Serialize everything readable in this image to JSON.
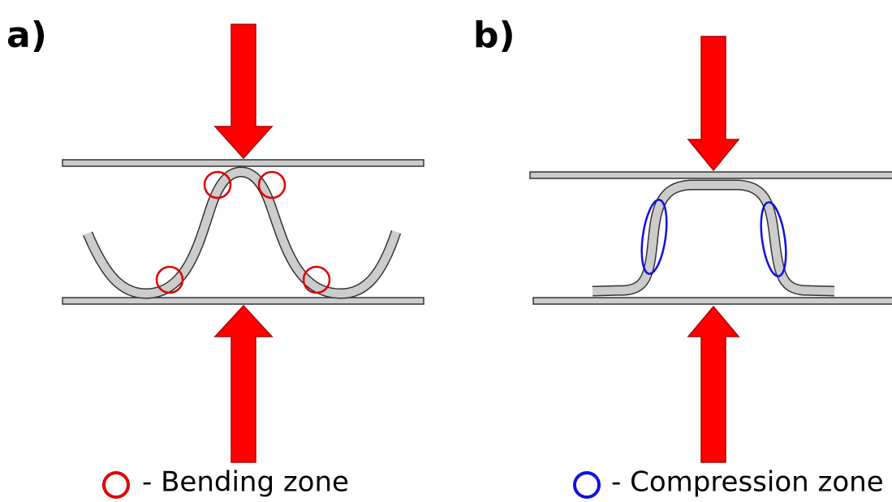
{
  "panels": [
    {
      "label": "a)",
      "legend": "- Bending zone"
    },
    {
      "label": "b)",
      "legend": "- Compression zone"
    }
  ]
}
